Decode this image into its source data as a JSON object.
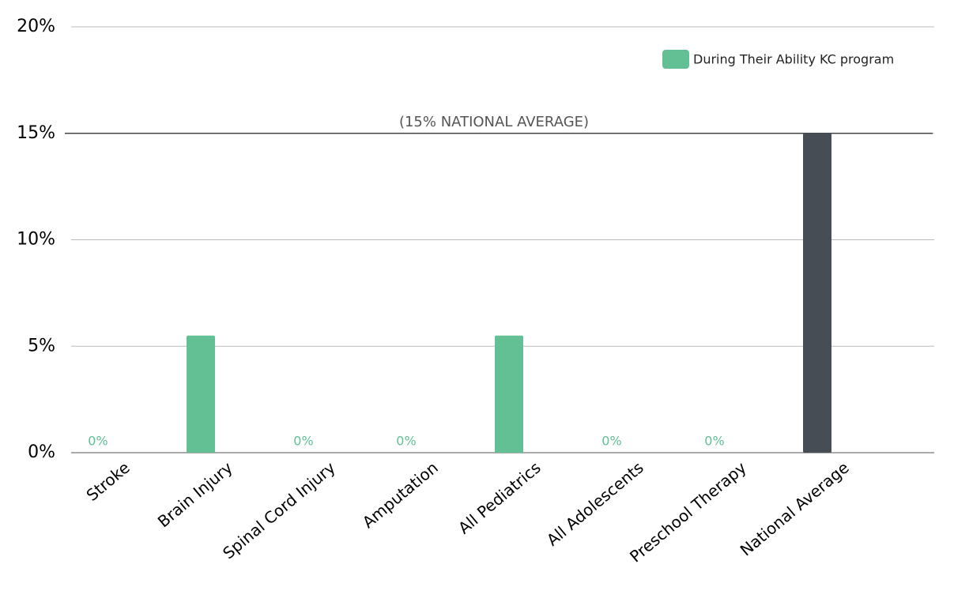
{
  "chart_data": {
    "type": "bar",
    "categories": [
      "Stroke",
      "Brain Injury",
      "Spinal Cord Injury",
      "Amputation",
      "All Pediatrics",
      "All Adolescents",
      "Preschool Therapy",
      "National Average"
    ],
    "series": [
      {
        "name": "During Their Ability KC program",
        "color": "#63c095",
        "values": [
          0,
          5.5,
          0,
          0,
          5.5,
          0,
          0,
          15
        ],
        "value_labels": [
          "0%",
          null,
          "0%",
          "0%",
          null,
          "0%",
          "0%",
          null
        ],
        "colors": [
          "#63c095",
          "#63c095",
          "#63c095",
          "#63c095",
          "#63c095",
          "#63c095",
          "#63c095",
          "#474d54"
        ]
      }
    ],
    "ylim": [
      0,
      20
    ],
    "yticks": [
      {
        "value": 0,
        "label": "0%"
      },
      {
        "value": 5,
        "label": "5%"
      },
      {
        "value": 10,
        "label": "10%"
      },
      {
        "value": 15,
        "label": "15%"
      },
      {
        "value": 20,
        "label": "20%"
      }
    ],
    "grid": true,
    "legend": "top-right",
    "reference_line": {
      "value": 15,
      "color": "#444444",
      "label": "(15% NATIONAL AVERAGE)"
    }
  }
}
